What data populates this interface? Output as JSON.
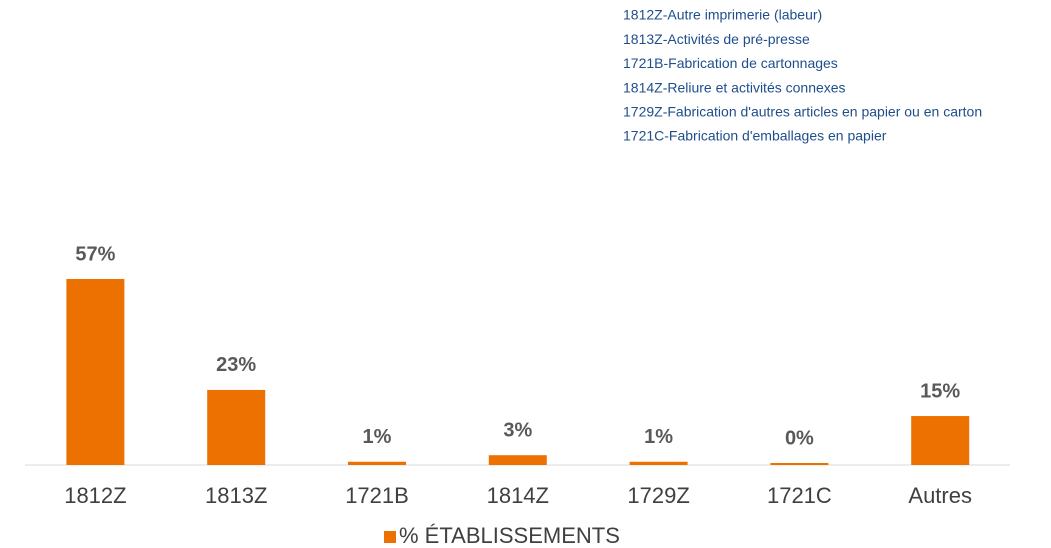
{
  "chart_data": {
    "type": "bar",
    "notes": [
      "1812Z-Autre imprimerie (labeur)",
      "1813Z-Activités de pré-presse",
      "1721B-Fabrication de cartonnages",
      "1814Z-Reliure et activités connexes",
      "1729Z-Fabrication d'autres articles en papier ou en carton",
      "1721C-Fabrication d'emballages en papier"
    ],
    "categories": [
      "1812Z",
      "1813Z",
      "1721B",
      "1814Z",
      "1729Z",
      "1721C",
      "Autres"
    ],
    "series": [
      {
        "name": "% ÉTABLISSEMENTS",
        "color": "#ed7100",
        "values": [
          57,
          23,
          1,
          3,
          1,
          0,
          15
        ],
        "value_labels": [
          "57%",
          "23%",
          "1%",
          "3%",
          "1%",
          "0%",
          "15%"
        ]
      }
    ]
  }
}
